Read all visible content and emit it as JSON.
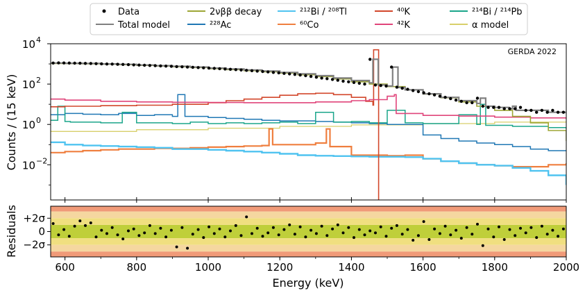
{
  "chart_data": {
    "type": "line",
    "title": "",
    "annotation": "GERDA 2022",
    "xlabel": "Energy (keV)",
    "ylabel": "Counts / (15 keV)",
    "residual_ylabel": "Residuals",
    "xlim": [
      560,
      2000
    ],
    "ylim": [
      0.00018,
      10000
    ],
    "yscale": "log",
    "x_ticks": [
      600,
      800,
      1000,
      1200,
      1400,
      1600,
      1800,
      2000
    ],
    "x_tick_labels": [
      "600",
      "800",
      "1000",
      "1200",
      "1400",
      "1600",
      "1800",
      "2000"
    ],
    "y_ticks": [
      0.01,
      1,
      100,
      10000
    ],
    "y_tick_labels": [
      "10",
      "10",
      "10",
      "10"
    ],
    "y_tick_exponents": [
      "−2",
      "0",
      "2",
      "4"
    ],
    "residual_ylim": [
      -3.8,
      3.8
    ],
    "residual_ticks": [
      2,
      0,
      -2
    ],
    "residual_tick_labels": [
      "+2σ",
      "0",
      "−2σ"
    ],
    "residual_bands": [
      {
        "from": 3,
        "to": 4,
        "color": "#f09a78"
      },
      {
        "from": 2,
        "to": 3,
        "color": "#f5d7a0"
      },
      {
        "from": -1,
        "to": 1,
        "color": "#bfcf3a"
      },
      {
        "from": 1,
        "to": 2,
        "color": "#f0df80"
      },
      {
        "from": -2,
        "to": -1,
        "color": "#f0df80"
      },
      {
        "from": -3,
        "to": -2,
        "color": "#f5d7a0"
      },
      {
        "from": -4,
        "to": -3,
        "color": "#f09a78"
      }
    ],
    "legend": [
      {
        "label": "Data",
        "color": "#000000",
        "marker": "dot"
      },
      {
        "label": "Total model",
        "color": "#808080",
        "marker": "line"
      },
      {
        "label": "2νββ decay",
        "color": "#9da635",
        "marker": "line"
      },
      {
        "label": "²²⁸Ac",
        "color": "#1f77b4",
        "marker": "line"
      },
      {
        "label": "²¹²Bi / ²⁰⁸Tl",
        "color": "#4fc3f0",
        "marker": "line"
      },
      {
        "label": "⁶⁰Co",
        "color": "#ef7f3f",
        "marker": "line"
      },
      {
        "label": "⁴⁰K",
        "color": "#d2462a",
        "marker": "line"
      },
      {
        "label": "⁴²K",
        "color": "#e0447a",
        "marker": "line"
      },
      {
        "label": "²¹⁴Bi / ²¹⁴Pb",
        "color": "#1aa58a",
        "marker": "line"
      },
      {
        "label": "α model",
        "color": "#d8cf6a",
        "marker": "line"
      }
    ],
    "data": {
      "x": [
        567,
        582,
        597,
        612,
        627,
        642,
        657,
        672,
        687,
        702,
        717,
        732,
        747,
        762,
        777,
        792,
        807,
        822,
        837,
        852,
        867,
        882,
        897,
        912,
        927,
        942,
        957,
        972,
        987,
        1002,
        1017,
        1032,
        1047,
        1062,
        1077,
        1092,
        1107,
        1122,
        1137,
        1152,
        1167,
        1182,
        1197,
        1212,
        1227,
        1242,
        1257,
        1272,
        1287,
        1302,
        1317,
        1332,
        1347,
        1362,
        1377,
        1392,
        1407,
        1422,
        1437,
        1452,
        1467,
        1482,
        1497,
        1512,
        1527,
        1542,
        1557,
        1572,
        1587,
        1602,
        1617,
        1632,
        1647,
        1662,
        1677,
        1692,
        1707,
        1722,
        1737,
        1752,
        1767,
        1782,
        1797,
        1812,
        1827,
        1842,
        1857,
        1872,
        1887,
        1902,
        1917,
        1932,
        1947,
        1962,
        1977,
        1992
      ],
      "y": [
        1100,
        1120,
        1110,
        1100,
        1090,
        1080,
        1060,
        1050,
        1030,
        1010,
        990,
        980,
        960,
        940,
        920,
        900,
        880,
        860,
        840,
        820,
        800,
        780,
        760,
        740,
        720,
        700,
        680,
        660,
        640,
        620,
        600,
        580,
        560,
        540,
        520,
        500,
        480,
        460,
        440,
        420,
        400,
        380,
        360,
        340,
        320,
        300,
        280,
        260,
        240,
        220,
        200,
        185,
        170,
        155,
        140,
        130,
        120,
        110,
        100,
        1700,
        90,
        85,
        80,
        700,
        70,
        62,
        55,
        48,
        42,
        37,
        33,
        29,
        25,
        22,
        19,
        16,
        14,
        12,
        12,
        20,
        8,
        7,
        7,
        7,
        6,
        6,
        6,
        7,
        5,
        5,
        4,
        5,
        4,
        5,
        4,
        4
      ]
    },
    "series": [
      {
        "name": "Total model",
        "color": "#808080",
        "width": 2.2,
        "x": [
          560,
          600,
          650,
          700,
          750,
          800,
          850,
          900,
          950,
          1000,
          1050,
          1100,
          1150,
          1200,
          1250,
          1300,
          1350,
          1400,
          1450,
          1460,
          1475,
          1500,
          1515,
          1530,
          1550,
          1600,
          1650,
          1700,
          1750,
          1760,
          1775,
          1800,
          1840,
          1850,
          1860,
          1900,
          1950,
          2000
        ],
        "y": [
          1100,
          1080,
          1050,
          1000,
          950,
          880,
          820,
          760,
          700,
          620,
          560,
          500,
          440,
          380,
          320,
          260,
          200,
          150,
          115,
          1700,
          90,
          80,
          700,
          68,
          52,
          33,
          22,
          15,
          11,
          20,
          8,
          7,
          6,
          8,
          5,
          5,
          4,
          3.5
        ]
      },
      {
        "name": "2νββ decay",
        "color": "#9da635",
        "width": 1.6,
        "x": [
          560,
          600,
          650,
          700,
          750,
          800,
          850,
          900,
          950,
          1000,
          1050,
          1100,
          1150,
          1200,
          1250,
          1300,
          1350,
          1400,
          1450,
          1500,
          1550,
          1600,
          1650,
          1700,
          1750,
          1800,
          1850,
          1900,
          1950,
          2000
        ],
        "y": [
          1050,
          1040,
          1010,
          965,
          910,
          845,
          785,
          720,
          660,
          580,
          520,
          460,
          405,
          350,
          290,
          235,
          180,
          130,
          100,
          75,
          52,
          32,
          21,
          13,
          8,
          5,
          2.5,
          1.2,
          0.5,
          0.15
        ]
      },
      {
        "name": "⁴²K",
        "color": "#e0447a",
        "width": 1.6,
        "x": [
          560,
          600,
          700,
          800,
          900,
          1000,
          1100,
          1200,
          1300,
          1400,
          1450,
          1500,
          1520,
          1525,
          1600,
          1700,
          1800,
          1900,
          2000
        ],
        "y": [
          18,
          16,
          14,
          13,
          12.5,
          12.2,
          12,
          12,
          13,
          15,
          17,
          25,
          30,
          3.5,
          2.8,
          2.6,
          2.3,
          2.1,
          1.9
        ]
      },
      {
        "name": "⁴⁰K",
        "color": "#d2462a",
        "width": 1.6,
        "x": [
          560,
          600,
          700,
          800,
          900,
          1000,
          1050,
          1100,
          1150,
          1200,
          1250,
          1300,
          1350,
          1400,
          1440,
          1460,
          1462,
          1475,
          1476
        ],
        "y": [
          7.5,
          8,
          8.5,
          9,
          10,
          12,
          15,
          18,
          22,
          28,
          33,
          35,
          30,
          22,
          14,
          9,
          5000,
          5000,
          0.0001
        ]
      },
      {
        "name": "²¹⁴Bi / ²¹⁴Pb",
        "color": "#1aa58a",
        "width": 1.5,
        "x": [
          560,
          580,
          600,
          615,
          640,
          700,
          760,
          800,
          850,
          900,
          950,
          1000,
          1050,
          1100,
          1150,
          1200,
          1250,
          1300,
          1350,
          1400,
          1450,
          1500,
          1550,
          1600,
          1650,
          1700,
          1750,
          1760,
          1775,
          1800,
          1850,
          1900,
          1950,
          2000
        ],
        "y": [
          1.6,
          8,
          1.4,
          1.3,
          1.3,
          1.2,
          4,
          1.2,
          1.2,
          1.1,
          1.3,
          1.1,
          1.2,
          1.1,
          1.2,
          1.3,
          1.1,
          4,
          1.3,
          1.4,
          1.2,
          5,
          1.2,
          1.1,
          1.1,
          3,
          1.0,
          10,
          0.9,
          0.9,
          0.8,
          0.8,
          0.7,
          0.6
        ]
      },
      {
        "name": "²²⁸Ac",
        "color": "#1f77b4",
        "width": 1.5,
        "x": [
          560,
          600,
          650,
          700,
          750,
          800,
          850,
          900,
          915,
          935,
          950,
          1000,
          1050,
          1100,
          1150,
          1200,
          1250,
          1300,
          1350,
          1400,
          1450,
          1500,
          1550,
          1600,
          1650,
          1700,
          1750,
          1800,
          1850,
          1900,
          1950,
          2000
        ],
        "y": [
          3,
          3.5,
          3.2,
          3,
          3.5,
          2.8,
          3,
          2.5,
          30,
          2.5,
          2.5,
          2.2,
          2,
          1.8,
          1.6,
          1.5,
          1.5,
          1.4,
          1.3,
          1.2,
          1.1,
          1.0,
          1.0,
          0.3,
          0.2,
          0.15,
          0.12,
          0.1,
          0.08,
          0.06,
          0.05,
          0.05
        ]
      },
      {
        "name": "²¹²Bi / ²⁰⁸Tl",
        "color": "#4fc3f0",
        "width": 2.4,
        "x": [
          560,
          600,
          650,
          700,
          750,
          800,
          850,
          900,
          950,
          1000,
          1050,
          1100,
          1150,
          1200,
          1250,
          1300,
          1350,
          1400,
          1450,
          1500,
          1550,
          1600,
          1650,
          1700,
          1750,
          1800,
          1850,
          1900,
          1950,
          2000
        ],
        "y": [
          0.13,
          0.1,
          0.09,
          0.085,
          0.08,
          0.075,
          0.07,
          0.06,
          0.06,
          0.055,
          0.05,
          0.045,
          0.04,
          0.035,
          0.03,
          0.028,
          0.027,
          0.026,
          0.025,
          0.025,
          0.024,
          0.02,
          0.015,
          0.012,
          0.01,
          0.009,
          0.007,
          0.005,
          0.003,
          0.001
        ]
      },
      {
        "name": "⁶⁰Co",
        "color": "#ef7f3f",
        "width": 2.2,
        "x": [
          560,
          600,
          650,
          700,
          750,
          800,
          850,
          900,
          950,
          1000,
          1050,
          1100,
          1150,
          1170,
          1180,
          1300,
          1330,
          1340,
          1400,
          1500,
          1550,
          1600,
          1650,
          1700,
          1750,
          1800,
          1850,
          1900,
          1950,
          2000
        ],
        "y": [
          0.04,
          0.045,
          0.05,
          0.055,
          0.06,
          0.06,
          0.065,
          0.065,
          0.07,
          0.075,
          0.08,
          0.085,
          0.09,
          0.6,
          0.1,
          0.12,
          0.6,
          0.08,
          0.03,
          0.028,
          0.03,
          0.02,
          0.015,
          0.012,
          0.01,
          0.009,
          0.008,
          0.008,
          0.01,
          0.012
        ]
      },
      {
        "name": "α model",
        "color": "#d8cf6a",
        "width": 1.3,
        "x": [
          560,
          800,
          1000,
          1200,
          1400,
          1600,
          1800,
          2000
        ],
        "y": [
          0.45,
          0.55,
          0.65,
          0.8,
          0.95,
          1.1,
          1.3,
          1.5
        ]
      }
    ],
    "residuals": {
      "x": [
        567,
        582,
        597,
        612,
        627,
        642,
        657,
        672,
        687,
        702,
        717,
        732,
        747,
        762,
        777,
        792,
        807,
        822,
        837,
        852,
        867,
        882,
        897,
        912,
        927,
        942,
        957,
        972,
        987,
        1002,
        1017,
        1032,
        1047,
        1062,
        1077,
        1092,
        1107,
        1122,
        1137,
        1152,
        1167,
        1182,
        1197,
        1212,
        1227,
        1242,
        1257,
        1272,
        1287,
        1302,
        1317,
        1332,
        1347,
        1362,
        1377,
        1392,
        1407,
        1422,
        1437,
        1452,
        1467,
        1482,
        1497,
        1512,
        1527,
        1542,
        1557,
        1572,
        1587,
        1602,
        1617,
        1632,
        1647,
        1662,
        1677,
        1692,
        1707,
        1722,
        1737,
        1752,
        1767,
        1782,
        1797,
        1812,
        1827,
        1842,
        1857,
        1872,
        1887,
        1902,
        1917,
        1932,
        1947,
        1962,
        1977,
        1992
      ],
      "y": [
        1.2,
        -0.5,
        0.3,
        -0.7,
        0.8,
        1.6,
        0.9,
        1.3,
        -0.8,
        0.2,
        -0.3,
        0.6,
        -0.5,
        -1.1,
        0.1,
        0.4,
        -0.6,
        -0.2,
        0.9,
        -0.3,
        0.5,
        -0.8,
        0.2,
        -2.3,
        0.6,
        -2.5,
        -0.4,
        0.3,
        -0.9,
        0.7,
        -0.3,
        0.4,
        -0.8,
        0.1,
        0.9,
        -0.6,
        2.2,
        -0.3,
        0.5,
        -0.7,
        -0.2,
        0.6,
        -0.5,
        0.3,
        1.0,
        -0.4,
        0.7,
        -0.8,
        0.2,
        -0.3,
        0.8,
        -0.6,
        0.4,
        1.0,
        -0.2,
        0.6,
        -0.9,
        0.3,
        -0.5,
        0.1,
        -0.2,
        0.7,
        -0.7,
        0.5,
        0.9,
        -0.4,
        0.3,
        -1.3,
        -0.6,
        1.5,
        -1.2,
        0.4,
        -0.3,
        0.8,
        -0.5,
        0.2,
        -1.0,
        0.6,
        -0.4,
        1.1,
        -2.1,
        0.4,
        -0.8,
        0.7,
        -1.2,
        0.3,
        -0.6,
        0.5,
        -0.2,
        0.6,
        -0.9,
        0.8,
        -0.4,
        0.2,
        -0.7,
        0.4
      ]
    }
  }
}
